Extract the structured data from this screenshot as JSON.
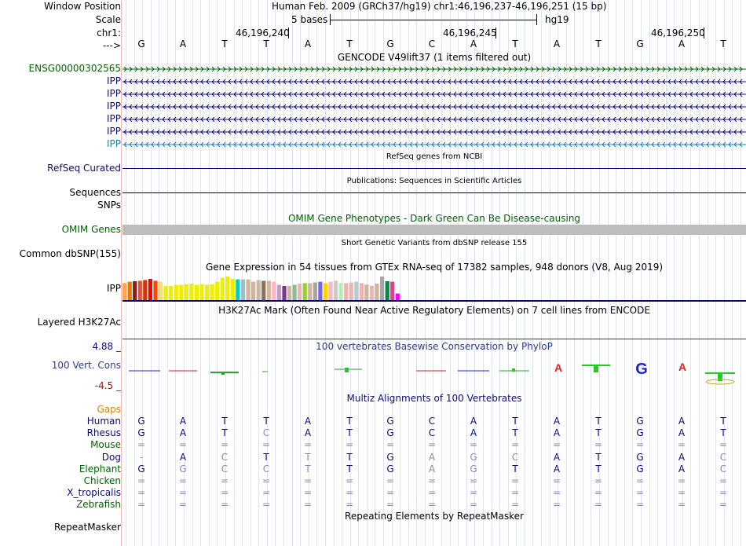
{
  "header": {
    "window_position_label": "Window Position",
    "position_text": "Human Feb. 2009 (GRCh37/hg19)   chr1:46,196,237-46,196,251 (15 bp)",
    "scale_label": "Scale",
    "scale_text": "5 bases",
    "assembly": "hg19",
    "chr_label": "chr1:",
    "coord1": "46,196,240",
    "coord2": "46,196,245",
    "coord3": "46,196,250",
    "arrow_label": "--->"
  },
  "sequence": [
    "G",
    "A",
    "T",
    "T",
    "A",
    "T",
    "G",
    "C",
    "A",
    "T",
    "A",
    "T",
    "G",
    "A",
    "T"
  ],
  "gencode": {
    "title": "GENCODE V49lift37 (1 items filtered out)",
    "tracks": [
      {
        "label": "ENSG00000302565",
        "color": "#006400",
        "dir": "right"
      },
      {
        "label": "IPP",
        "color": "#0c0c78",
        "dir": "left"
      },
      {
        "label": "IPP",
        "color": "#0c0c78",
        "dir": "left"
      },
      {
        "label": "IPP",
        "color": "#0c0c78",
        "dir": "left"
      },
      {
        "label": "IPP",
        "color": "#0c0c78",
        "dir": "left"
      },
      {
        "label": "IPP",
        "color": "#0c0c78",
        "dir": "left"
      },
      {
        "label": "IPP",
        "color": "#1e7fb4",
        "dir": "left"
      }
    ]
  },
  "refseq": {
    "title": "RefSeq genes from NCBI",
    "label": "RefSeq Curated"
  },
  "publications": {
    "title": "Publications: Sequences in Scientific Articles",
    "label": "Sequences"
  },
  "snps_label": "SNPs",
  "omim": {
    "title": "OMIM Gene Phenotypes - Dark Green Can Be Disease-causing",
    "label": "OMIM Genes"
  },
  "dbsnp": {
    "title": "Short Genetic Variants from dbSNP release 155",
    "label": "Common dbSNP(155)"
  },
  "gtex": {
    "title": "Gene Expression in 54 tissues from GTEx RNA-seq of 17382 samples, 948 donors (V8, Aug 2019)",
    "label": "IPP"
  },
  "chart_data": {
    "type": "bar",
    "title": "Gene Expression in 54 tissues from GTEx RNA-seq of 17382 samples, 948 donors (V8, Aug 2019)",
    "values": [
      0.72,
      0.78,
      0.8,
      0.82,
      0.85,
      0.9,
      0.82,
      0.78,
      0.6,
      0.6,
      0.65,
      0.65,
      0.68,
      0.7,
      0.65,
      0.68,
      0.65,
      0.68,
      0.78,
      0.95,
      1.0,
      0.9,
      0.88,
      0.88,
      0.88,
      0.78,
      0.85,
      0.82,
      0.82,
      0.78,
      0.65,
      0.6,
      0.6,
      0.65,
      0.7,
      0.72,
      0.72,
      0.75,
      0.78,
      0.72,
      0.78,
      0.82,
      0.72,
      0.72,
      0.75,
      0.78,
      0.72,
      0.66,
      0.6,
      0.7,
      1.0,
      0.8,
      0.78,
      0.28
    ],
    "colors": [
      "#ffa54f",
      "#ee7600",
      "#8b1a1a",
      "#cd5b45",
      "#cd3700",
      "#ff0000",
      "#ff4500",
      "#eedd82",
      "#eeee00",
      "#eeee00",
      "#eeee00",
      "#eeee00",
      "#eeee00",
      "#eeee00",
      "#eeee00",
      "#eeee00",
      "#eeee00",
      "#eeee00",
      "#eeee00",
      "#eeee00",
      "#eeee00",
      "#eeee00",
      "#00cdcd",
      "#9ac0cd",
      "#cdb79e",
      "#cdb79e",
      "#cdb79e",
      "#8b7355",
      "#cdb79e",
      "#ffb6c1",
      "#cd96cd",
      "#7a378b",
      "#cdb79e",
      "#8fbc8f",
      "#eeb4b4",
      "#9acd32",
      "#cdb79e",
      "#a6a6a6",
      "#7a67ee",
      "#ffd700",
      "#ffb6c1",
      "#cdc9c9",
      "#b4eeb4",
      "#eeb4b4",
      "#eeb4b4",
      "#b4cdcd",
      "#eeb4b4",
      "#cdb79e",
      "#eeb4b4",
      "#cdb79e",
      "#a6a6a6",
      "#008b45",
      "#ee3a8c",
      "#ff00ff"
    ]
  },
  "h3k27ac": {
    "title": "H3K27Ac Mark (Often Found Near Active Regulatory Elements) on 7 cell lines from ENCODE",
    "label": "Layered H3K27Ac"
  },
  "cons": {
    "title": "100 vertebrates Basewise Conservation by PhyloP",
    "label": "100 Vert. Cons",
    "max": "4.88 _",
    "min": "-4.5 _"
  },
  "multiz": {
    "title": "Multiz Alignments of 100 Vertebrates",
    "gaps_label": "Gaps",
    "species": [
      {
        "name": "Human",
        "color": "#0c0c78",
        "bases": [
          "G",
          "A",
          "T",
          "T",
          "A",
          "T",
          "G",
          "C",
          "A",
          "T",
          "A",
          "T",
          "G",
          "A",
          "T"
        ]
      },
      {
        "name": "Rhesus",
        "color": "#0c0c78",
        "bases": [
          "G",
          "A",
          "T",
          "C",
          "A",
          "T",
          "G",
          "C",
          "A",
          "T",
          "A",
          "T",
          "G",
          "A",
          "T"
        ]
      },
      {
        "name": "Mouse",
        "color": "#006400",
        "bases": [
          "=",
          "=",
          "=",
          "=",
          "=",
          "=",
          "=",
          "=",
          "=",
          "=",
          "=",
          "=",
          "=",
          "=",
          "="
        ]
      },
      {
        "name": "Dog",
        "color": "#0c0c78",
        "bases": [
          "-",
          "A",
          "C",
          "T",
          "T",
          "T",
          "G",
          "A",
          "G",
          "C",
          "A",
          "T",
          "G",
          "A",
          "C"
        ]
      },
      {
        "name": "Elephant",
        "color": "#006400",
        "bases": [
          "G",
          "G",
          "C",
          "C",
          "T",
          "T",
          "G",
          "A",
          "G",
          "T",
          "A",
          "T",
          "G",
          "A",
          "C"
        ]
      },
      {
        "name": "Chicken",
        "color": "#006400",
        "bases": [
          "=",
          "=",
          "=",
          "=",
          "=",
          "=",
          "=",
          "=",
          "=",
          "=",
          "=",
          "=",
          "=",
          "=",
          "="
        ]
      },
      {
        "name": "X_tropicalis",
        "color": "#0c0c78",
        "bases": [
          "=",
          "=",
          "=",
          "=",
          "=",
          "=",
          "=",
          "=",
          "=",
          "=",
          "=",
          "=",
          "=",
          "=",
          "="
        ]
      },
      {
        "name": "Zebrafish",
        "color": "#006400",
        "bases": [
          "=",
          "=",
          "=",
          "=",
          "=",
          "=",
          "=",
          "=",
          "=",
          "=",
          "=",
          "=",
          "=",
          "=",
          "="
        ]
      }
    ]
  },
  "repeatmasker": {
    "title": "Repeating Elements by RepeatMasker",
    "label": "RepeatMasker"
  }
}
